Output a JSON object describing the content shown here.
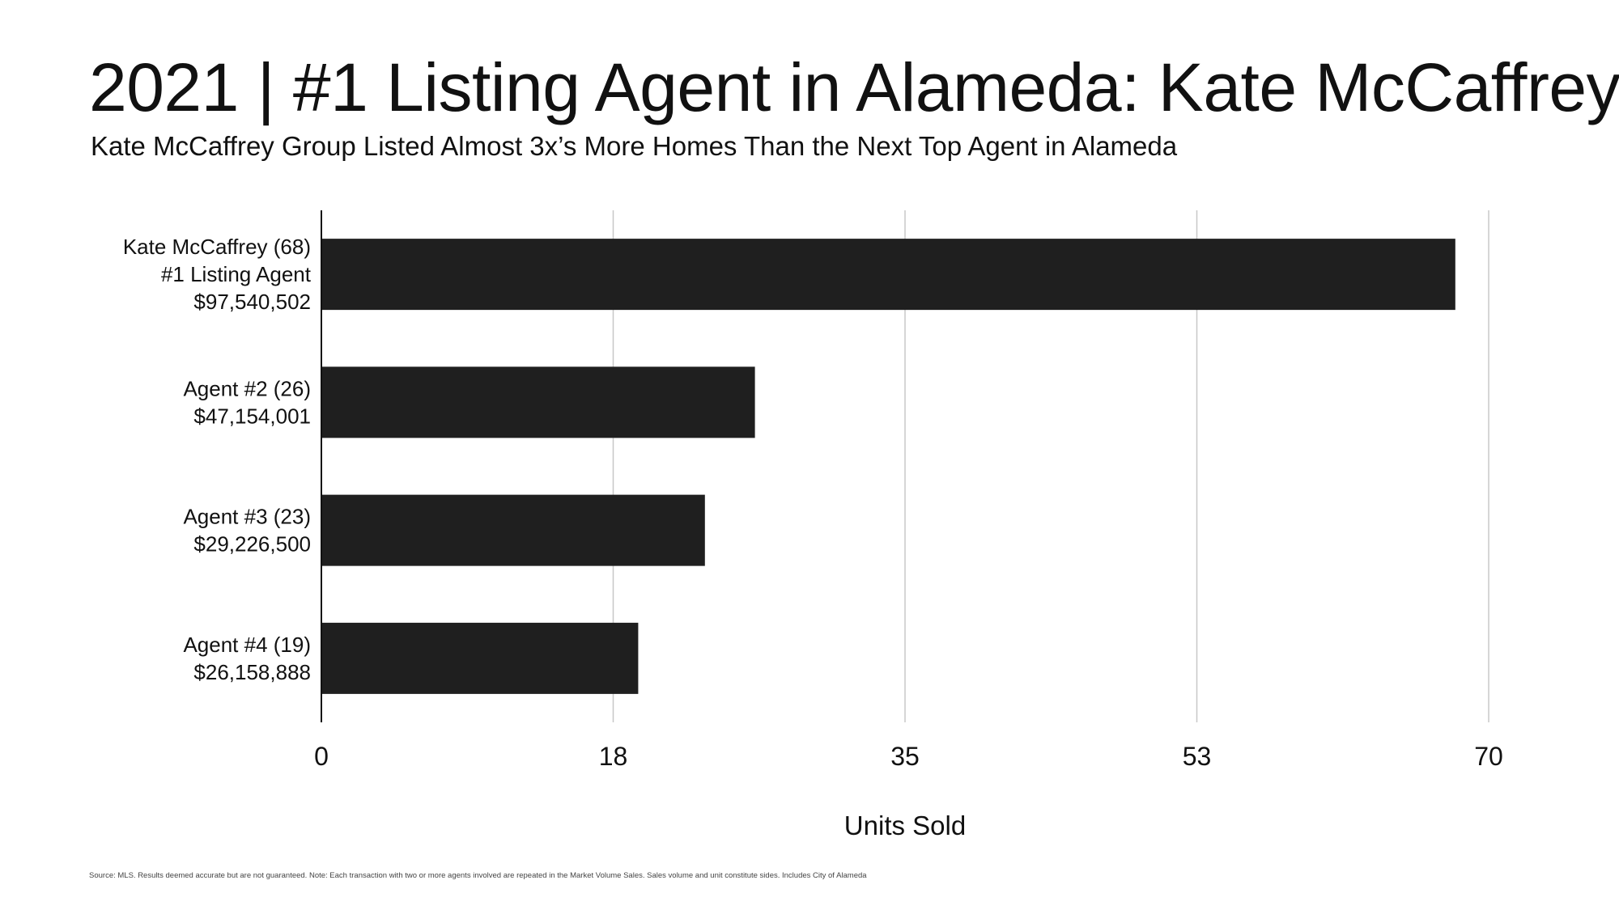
{
  "title": "2021 | #1 Listing Agent in Alameda: Kate McCaffrey",
  "subtitle": "Kate McCaffrey Group Listed Almost 3x’s More Homes Than the Next Top Agent in Alameda",
  "source": "Source: MLS.  Results deemed accurate but are not guaranteed. Note:  Each transaction with two or more  agents involved are repeated in the Market Volume Sales. Sales volume and unit constitute sides. Includes City of Alameda",
  "colors": {
    "bar": "#1f1f1f",
    "grid": "#c8c8c8",
    "axis": "#111111"
  },
  "chart_data": {
    "type": "bar",
    "orientation": "horizontal",
    "xlabel": "Units Sold",
    "ylabel": "",
    "xlim": [
      0,
      70
    ],
    "x_ticks": [
      "0",
      "18",
      "35",
      "53",
      "70"
    ],
    "x_tick_values": [
      0,
      17.5,
      35,
      52.5,
      70
    ],
    "grid": "vertical",
    "categories": [
      [
        "Kate McCaffrey (68)",
        "#1 Listing Agent",
        "$97,540,502"
      ],
      [
        "Agent #2 (26)",
        "$47,154,001"
      ],
      [
        "Agent #3 (23)",
        "$29,226,500"
      ],
      [
        "Agent #4 (19)",
        "$26,158,888"
      ]
    ],
    "values": [
      68,
      26,
      23,
      19
    ]
  }
}
